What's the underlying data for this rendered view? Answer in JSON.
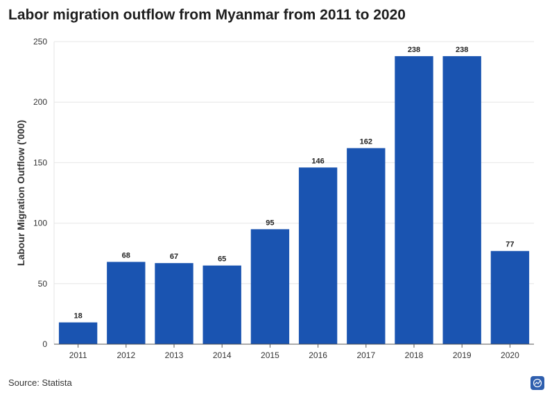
{
  "title": "Labor migration outflow from Myanmar from 2011 to 2020",
  "source": "Source: Statista",
  "colors": {
    "bar": "#1a54b1",
    "grid": "#e6e6e6",
    "axis": "#555555"
  },
  "chart_data": {
    "type": "bar",
    "title": "Labor migration outflow from Myanmar from 2011 to 2020",
    "xlabel": "",
    "ylabel": "Labour Migration Outflow ('000)",
    "categories": [
      "2011",
      "2012",
      "2013",
      "2014",
      "2015",
      "2016",
      "2017",
      "2018",
      "2019",
      "2020"
    ],
    "values": [
      18,
      68,
      67,
      65,
      95,
      146,
      162,
      238,
      238,
      77
    ],
    "ylim": [
      0,
      250
    ],
    "yticks": [
      0,
      50,
      100,
      150,
      200,
      250
    ],
    "grid": true,
    "data_labels": true
  }
}
